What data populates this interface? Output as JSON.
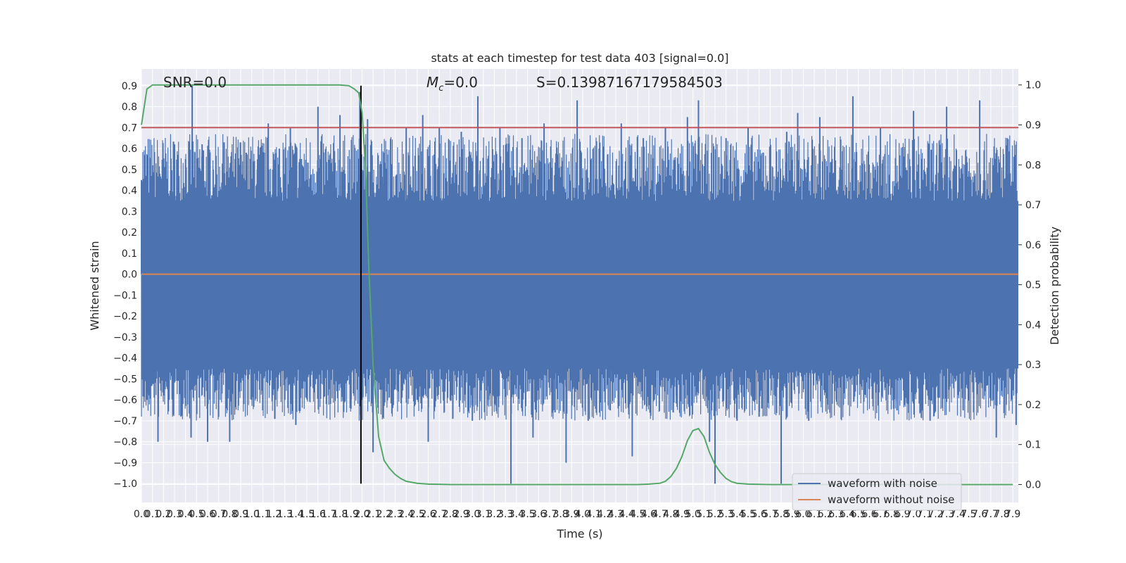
{
  "chart_data": {
    "type": "line",
    "title": "stats at each timestep for test data 403 [signal=0.0]",
    "xlabel": "Time (s)",
    "ylabel": "Whitened strain",
    "ylabel_right": "Detection probability",
    "xlim": [
      0.0,
      7.95
    ],
    "ylim": [
      -1.09,
      0.98
    ],
    "ylim_right": [
      -0.045,
      1.04
    ],
    "x_ticks": [
      0.0,
      0.1,
      0.2,
      0.3,
      0.4,
      0.5,
      0.6,
      0.7,
      0.8,
      0.9,
      1.0,
      1.1,
      1.2,
      1.3,
      1.4,
      1.5,
      1.6,
      1.7,
      1.8,
      1.9,
      2.0,
      2.1,
      2.2,
      2.3,
      2.4,
      2.5,
      2.6,
      2.7,
      2.8,
      2.9,
      3.0,
      3.1,
      3.2,
      3.3,
      3.4,
      3.5,
      3.6,
      3.7,
      3.8,
      3.9,
      4.0,
      4.1,
      4.2,
      4.3,
      4.4,
      4.5,
      4.6,
      4.7,
      4.8,
      4.9,
      5.0,
      5.1,
      5.2,
      5.3,
      5.4,
      5.5,
      5.6,
      5.7,
      5.8,
      5.9,
      6.0,
      6.1,
      6.2,
      6.3,
      6.4,
      6.5,
      6.6,
      6.7,
      6.8,
      6.9,
      7.0,
      7.1,
      7.2,
      7.3,
      7.4,
      7.5,
      7.6,
      7.7,
      7.8,
      7.9
    ],
    "x_tick_labels": [
      "0.0",
      "0.1",
      "0.2",
      "0.3",
      "0.4",
      "0.5",
      "0.6",
      "0.7",
      "0.8",
      "0.9",
      "1.0",
      "1.1",
      "1.2",
      "1.3",
      "1.4",
      "1.5",
      "1.6",
      "1.7",
      "1.8",
      "1.9",
      "2.0",
      "2.1",
      "2.2",
      "2.3",
      "2.4",
      "2.5",
      "2.6",
      "2.7",
      "2.8",
      "2.9",
      "3.0",
      "3.1",
      "3.2",
      "3.3",
      "3.4",
      "3.5",
      "3.6",
      "3.7",
      "3.8",
      "3.9",
      "4.0",
      "4.1",
      "4.2",
      "4.3",
      "4.4",
      "4.5",
      "4.6",
      "4.7",
      "4.8",
      "4.9",
      "5.0",
      "5.1",
      "5.2",
      "5.3",
      "5.4",
      "5.5",
      "5.6",
      "5.7",
      "5.8",
      "5.9",
      "6.0",
      "6.1",
      "6.2",
      "6.3",
      "6.4",
      "6.5",
      "6.6",
      "6.7",
      "6.8",
      "6.9",
      "7.0",
      "7.1",
      "7.2",
      "7.3",
      "7.4",
      "7.5",
      "7.6",
      "7.7",
      "7.8",
      "7.9"
    ],
    "y_ticks": [
      0.9,
      0.8,
      0.7,
      0.6,
      0.5,
      0.4,
      0.3,
      0.2,
      0.1,
      0.0,
      -0.1,
      -0.2,
      -0.3,
      -0.4,
      -0.5,
      -0.6,
      -0.7,
      -0.8,
      -0.9,
      -1.0
    ],
    "y_tick_labels": [
      "0.9",
      "0.8",
      "0.7",
      "0.6",
      "0.5",
      "0.4",
      "0.3",
      "0.2",
      "0.1",
      "0.0",
      "−0.1",
      "−0.2",
      "−0.3",
      "−0.4",
      "−0.5",
      "−0.6",
      "−0.7",
      "−0.8",
      "−0.9",
      "−1.0"
    ],
    "y_ticks_right": [
      1.0,
      0.9,
      0.8,
      0.7,
      0.6,
      0.5,
      0.4,
      0.3,
      0.2,
      0.1,
      0.0
    ],
    "y_tick_labels_right": [
      "1.0",
      "0.9",
      "0.8",
      "0.7",
      "0.6",
      "0.5",
      "0.4",
      "0.3",
      "0.2",
      "0.1",
      "0.0"
    ],
    "annotations": [
      {
        "text": "SNR=0.0",
        "x": 0.2,
        "y": 0.92
      },
      {
        "text": "M_c=0.0",
        "x": 2.6,
        "y": 0.92
      },
      {
        "text": "S=0.13987167179584503",
        "x": 3.6,
        "y": 0.92
      }
    ],
    "threshold_line": {
      "y": 0.7,
      "color": "#c44e52"
    },
    "vertical_marker": {
      "x": 1.99,
      "color": "#000000"
    },
    "series": [
      {
        "name": "waveform with noise",
        "color": "#4c72b0",
        "description_stats": {
          "typical_min": -0.45,
          "typical_max": 0.35,
          "peak_max": 0.9,
          "peak_min": -1.0
        },
        "sample_points": [
          [
            0.0,
            0.45
          ],
          [
            0.05,
            -0.6
          ],
          [
            0.1,
            0.52
          ],
          [
            0.15,
            -0.8
          ],
          [
            0.2,
            0.4
          ],
          [
            0.25,
            -0.6
          ],
          [
            0.3,
            0.62
          ],
          [
            0.35,
            -0.45
          ],
          [
            0.4,
            0.55
          ],
          [
            0.45,
            -0.78
          ],
          [
            0.46,
            0.9
          ],
          [
            0.5,
            -0.5
          ],
          [
            0.55,
            0.62
          ],
          [
            0.6,
            -0.8
          ],
          [
            0.65,
            0.5
          ],
          [
            0.7,
            -0.55
          ],
          [
            0.75,
            0.63
          ],
          [
            0.8,
            -0.8
          ],
          [
            0.85,
            0.55
          ],
          [
            0.9,
            -0.5
          ],
          [
            0.95,
            0.58
          ],
          [
            1.0,
            -0.6
          ],
          [
            1.05,
            0.5
          ],
          [
            1.1,
            -0.65
          ],
          [
            1.15,
            0.72
          ],
          [
            1.2,
            -0.55
          ],
          [
            1.25,
            0.6
          ],
          [
            1.3,
            -0.6
          ],
          [
            1.35,
            0.7
          ],
          [
            1.4,
            -0.72
          ],
          [
            1.45,
            0.55
          ],
          [
            1.5,
            -0.5
          ],
          [
            1.6,
            0.8
          ],
          [
            1.7,
            -0.55
          ],
          [
            1.8,
            0.76
          ],
          [
            1.9,
            -0.6
          ],
          [
            1.98,
            0.87
          ],
          [
            2.0,
            -0.6
          ],
          [
            2.05,
            0.74
          ],
          [
            2.1,
            -0.85
          ],
          [
            2.2,
            0.58
          ],
          [
            2.3,
            -0.55
          ],
          [
            2.4,
            0.7
          ],
          [
            2.5,
            -0.6
          ],
          [
            2.55,
            0.76
          ],
          [
            2.6,
            -0.8
          ],
          [
            2.7,
            0.7
          ],
          [
            2.8,
            -0.6
          ],
          [
            2.9,
            0.68
          ],
          [
            3.0,
            -0.7
          ],
          [
            3.05,
            0.85
          ],
          [
            3.15,
            -0.6
          ],
          [
            3.25,
            0.7
          ],
          [
            3.35,
            -1.0
          ],
          [
            3.45,
            0.65
          ],
          [
            3.55,
            -0.78
          ],
          [
            3.65,
            0.72
          ],
          [
            3.75,
            -0.66
          ],
          [
            3.85,
            -0.9
          ],
          [
            3.95,
            0.83
          ],
          [
            4.05,
            -0.7
          ],
          [
            4.15,
            0.6
          ],
          [
            4.25,
            -0.65
          ],
          [
            4.35,
            0.72
          ],
          [
            4.45,
            -0.87
          ],
          [
            4.55,
            0.65
          ],
          [
            4.65,
            -0.6
          ],
          [
            4.75,
            0.7
          ],
          [
            4.85,
            -0.58
          ],
          [
            4.95,
            0.75
          ],
          [
            5.05,
            0.83
          ],
          [
            5.15,
            -0.8
          ],
          [
            5.2,
            -1.0
          ],
          [
            5.3,
            0.65
          ],
          [
            5.4,
            -0.7
          ],
          [
            5.5,
            0.7
          ],
          [
            5.6,
            -0.68
          ],
          [
            5.7,
            0.6
          ],
          [
            5.8,
            -1.0
          ],
          [
            5.85,
            0.68
          ],
          [
            5.95,
            0.77
          ],
          [
            6.05,
            -0.7
          ],
          [
            6.15,
            0.75
          ],
          [
            6.3,
            -0.6
          ],
          [
            6.45,
            0.85
          ],
          [
            6.6,
            -0.55
          ],
          [
            6.7,
            0.7
          ],
          [
            6.85,
            -0.65
          ],
          [
            7.0,
            0.78
          ],
          [
            7.15,
            -0.7
          ],
          [
            7.3,
            0.8
          ],
          [
            7.45,
            -0.65
          ],
          [
            7.6,
            0.83
          ],
          [
            7.75,
            -0.78
          ],
          [
            7.85,
            0.65
          ],
          [
            7.93,
            -0.72
          ]
        ]
      },
      {
        "name": "waveform without noise",
        "color": "#dd8452",
        "x": [
          0.0,
          7.95
        ],
        "values": [
          0.0,
          0.0
        ]
      },
      {
        "name": "detection probability",
        "axis": "right",
        "color": "#55a868",
        "x": [
          0.0,
          0.05,
          0.1,
          0.2,
          0.5,
          1.0,
          1.5,
          1.8,
          1.88,
          1.93,
          1.97,
          2.0,
          2.03,
          2.06,
          2.1,
          2.15,
          2.2,
          2.25,
          2.3,
          2.35,
          2.4,
          2.5,
          2.6,
          2.8,
          3.5,
          4.0,
          4.5,
          4.6,
          4.7,
          4.75,
          4.8,
          4.85,
          4.9,
          4.95,
          5.0,
          5.05,
          5.1,
          5.15,
          5.2,
          5.25,
          5.3,
          5.35,
          5.4,
          5.5,
          5.7,
          6.0,
          7.0,
          7.9
        ],
        "values": [
          0.9,
          0.99,
          1.0,
          1.0,
          1.0,
          1.0,
          1.0,
          1.0,
          0.998,
          0.99,
          0.98,
          0.93,
          0.8,
          0.55,
          0.3,
          0.12,
          0.06,
          0.04,
          0.025,
          0.015,
          0.008,
          0.003,
          0.001,
          0.0,
          0.0,
          0.0,
          0.0,
          0.001,
          0.003,
          0.008,
          0.02,
          0.04,
          0.07,
          0.11,
          0.135,
          0.14,
          0.12,
          0.08,
          0.05,
          0.03,
          0.015,
          0.007,
          0.003,
          0.001,
          0.0,
          0.0,
          0.0,
          0.0
        ]
      }
    ],
    "legend": {
      "placement": "bottom-right",
      "entries": [
        "waveform with noise",
        "waveform without noise"
      ]
    },
    "grid": true,
    "style": {
      "background": "#eaeaf2",
      "grid_color": "#ffffff"
    }
  }
}
